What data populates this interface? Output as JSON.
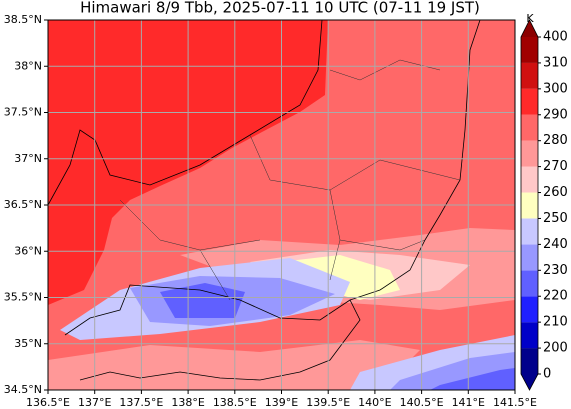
{
  "chart_data": {
    "type": "map",
    "title": "Himawari 8/9 Tbb, 2025-07-11 10 UTC (07-11 19 JST)",
    "xlim": [
      136.5,
      141.5
    ],
    "ylim": [
      34.5,
      38.5
    ],
    "xticks": [
      {
        "value": 136.5,
        "label": "136.5°E"
      },
      {
        "value": 137,
        "label": "137°E"
      },
      {
        "value": 137.5,
        "label": "137.5°E"
      },
      {
        "value": 138,
        "label": "138°E"
      },
      {
        "value": 138.5,
        "label": "138.5°E"
      },
      {
        "value": 139,
        "label": "139°E"
      },
      {
        "value": 139.5,
        "label": "139.5°E"
      },
      {
        "value": 140,
        "label": "140°E"
      },
      {
        "value": 140.5,
        "label": "140.5°E"
      },
      {
        "value": 141,
        "label": "141°E"
      },
      {
        "value": 141.5,
        "label": "141.5°E"
      }
    ],
    "yticks": [
      {
        "value": 34.5,
        "label": "34.5°N"
      },
      {
        "value": 35,
        "label": "35°N"
      },
      {
        "value": 35.5,
        "label": "35.5°N"
      },
      {
        "value": 36,
        "label": "36°N"
      },
      {
        "value": 36.5,
        "label": "36.5°N"
      },
      {
        "value": 37,
        "label": "37°N"
      },
      {
        "value": 37.5,
        "label": "37.5°N"
      },
      {
        "value": 38,
        "label": "38°N"
      },
      {
        "value": 38.5,
        "label": "38.5°N"
      }
    ],
    "grid": true,
    "colorbar": {
      "label": "K",
      "levels": [
        0,
        200,
        210,
        220,
        230,
        240,
        250,
        260,
        270,
        280,
        290,
        300,
        310,
        400
      ],
      "colors": [
        "#00008b",
        "#0000c8",
        "#2020ff",
        "#6060ff",
        "#9898ff",
        "#c8c8ff",
        "#ffffc0",
        "#ffc8c8",
        "#ff9898",
        "#ff6868",
        "#ff2a2a",
        "#d01010",
        "#a00000"
      ],
      "under_color": "#00008b",
      "over_color": "#8b0000"
    }
  }
}
